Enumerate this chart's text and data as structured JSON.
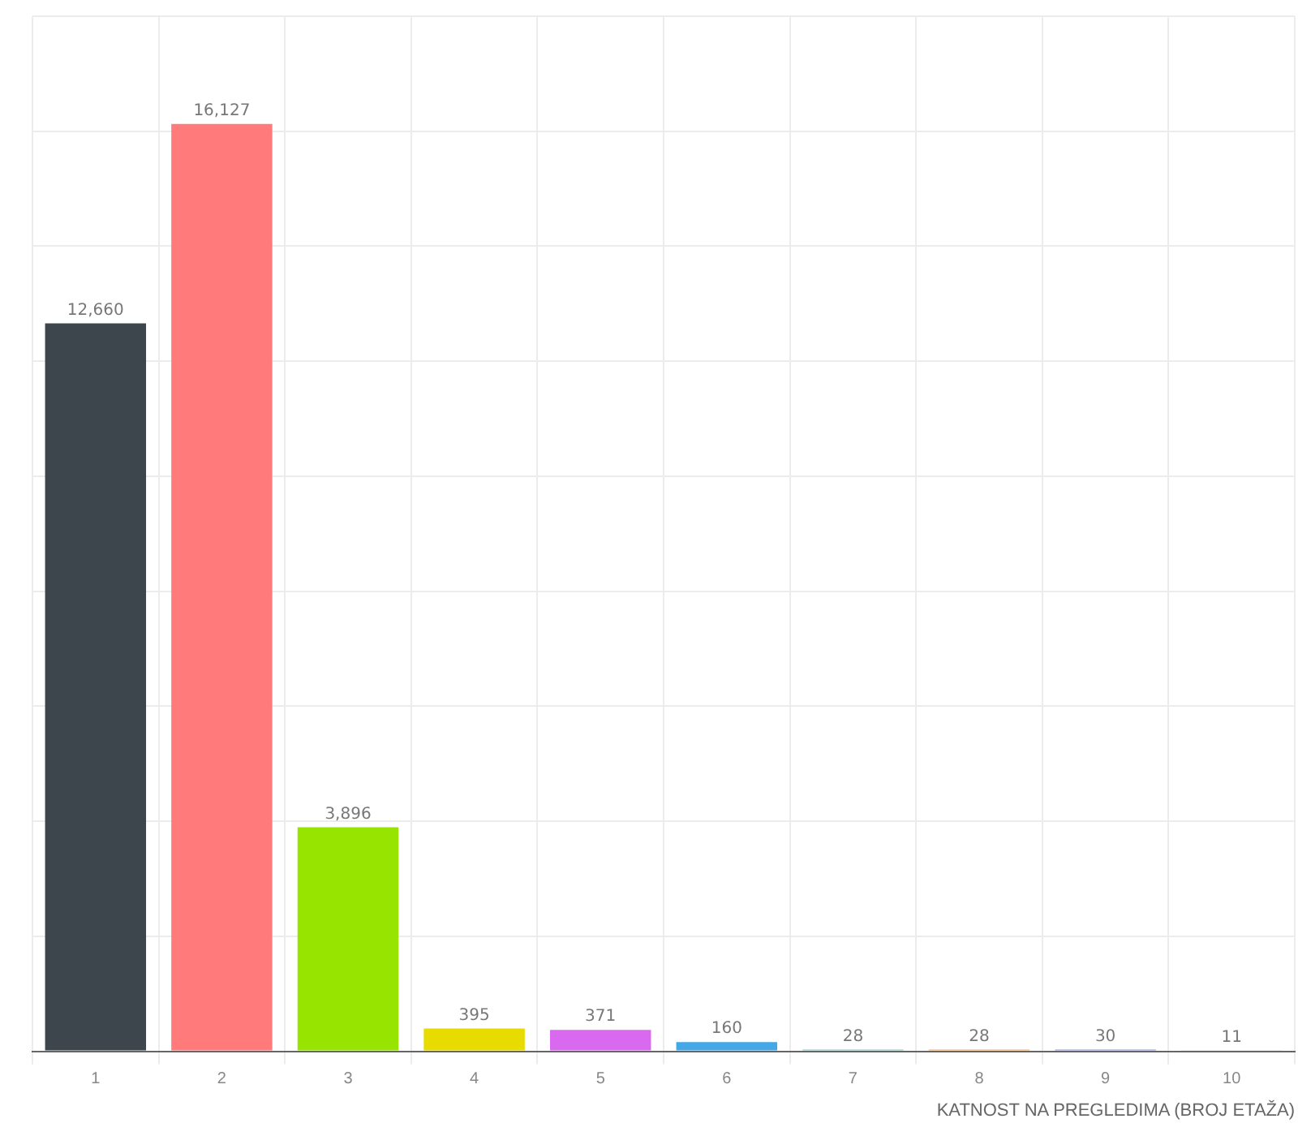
{
  "chart_data": {
    "type": "bar",
    "xlabel": "KATNOST NA PREGLEDIMA (BROJ ETAŽA)",
    "categories": [
      "1",
      "2",
      "3",
      "4",
      "5",
      "6",
      "7",
      "8",
      "9",
      "10"
    ],
    "values": [
      12660,
      16127,
      3896,
      395,
      371,
      160,
      28,
      28,
      30,
      11
    ],
    "colors": [
      "#3d464d",
      "#ff7b7b",
      "#97e400",
      "#e8db00",
      "#d96aef",
      "#45a8e6",
      "#7fc4b8",
      "#f2a65a",
      "#8e8edb",
      "#c9c9c9"
    ],
    "value_labels": [
      "12,660",
      "16,127",
      "3,896",
      "395",
      "371",
      "160",
      "28",
      "28",
      "30",
      "11"
    ],
    "tick_labels": "x",
    "grid": true,
    "legend": false
  }
}
